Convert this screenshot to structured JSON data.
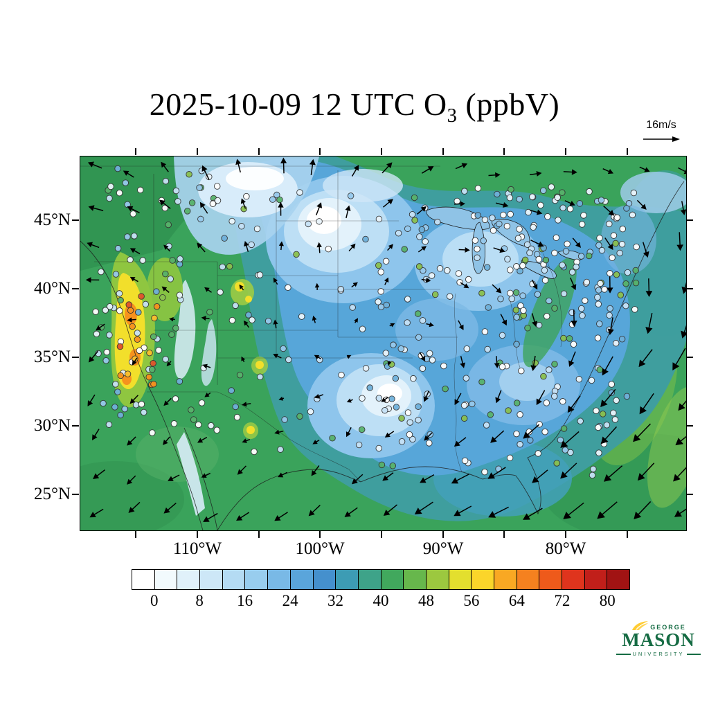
{
  "title": {
    "prefix": "2025-10-09 12 UTC O",
    "subscript": "3",
    "suffix": " (ppbV)"
  },
  "wind_reference": {
    "label": "16m/s"
  },
  "axes": {
    "lat_labels": [
      "45°N",
      "40°N",
      "35°N",
      "30°N",
      "25°N"
    ],
    "lon_labels": [
      "110°W",
      "100°W",
      "90°W",
      "80°W"
    ]
  },
  "colorbar": {
    "tick_labels": [
      "0",
      "8",
      "16",
      "24",
      "32",
      "40",
      "48",
      "56",
      "64",
      "72",
      "80"
    ],
    "cell_colors": [
      "#ffffff",
      "#f2fafd",
      "#e0f1fa",
      "#cde7f7",
      "#b4dbf3",
      "#98cdee",
      "#79b9e6",
      "#5aa5db",
      "#4590cd",
      "#3d9cb4",
      "#3ea389",
      "#41a85d",
      "#67b74c",
      "#9cc83f",
      "#e3df2e",
      "#fbd52a",
      "#f9a823",
      "#f5811f",
      "#ee5a1b",
      "#df341d",
      "#c11f1a",
      "#a11313"
    ]
  },
  "logo": {
    "top": "GEORGE",
    "middle": "MASON",
    "bottom": "UNIVERSITY"
  },
  "colors": {
    "gmu_green": "#156B43",
    "gmu_gold": "#FFCC33",
    "frame": "#000000"
  },
  "chart_data": {
    "type": "heatmap",
    "title": "2025-10-09 12 UTC O3 (ppbV)",
    "variable": "O3",
    "unit": "ppbV",
    "valid_time": "2025-10-09 12 UTC",
    "region": "Continental United States and surrounding ocean",
    "lat_ticks_deg_n": [
      45,
      40,
      35,
      30,
      25
    ],
    "lon_ticks_deg_w": [
      110,
      100,
      90,
      80
    ],
    "colorbar_levels": [
      0,
      8,
      16,
      24,
      32,
      40,
      48,
      56,
      64,
      72,
      80
    ],
    "colorbar_interval": 4,
    "wind_reference_m_s": 16,
    "overlays": [
      "filled ozone contours",
      "surface station observations (circle markers)",
      "wind vector arrows"
    ],
    "notable_features": [
      "elevated ozone 48-72 ppbV over California / Nevada",
      "very low ozone <16 ppbV over northern plains, central plains and Texas",
      "moderate ozone 24-40 ppbV over eastern US, Gulf and Atlantic"
    ]
  }
}
